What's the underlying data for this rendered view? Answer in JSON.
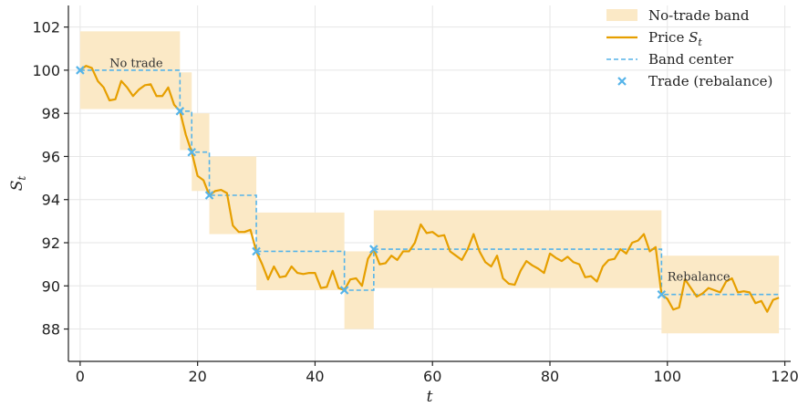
{
  "chart_data": {
    "type": "line",
    "xlabel": "t",
    "ylabel": "S",
    "ylabel_sub": "t",
    "xlim": [
      -2,
      121
    ],
    "ylim": [
      86.5,
      103
    ],
    "xticks": [
      0,
      20,
      40,
      60,
      80,
      100,
      120
    ],
    "yticks": [
      88,
      90,
      92,
      94,
      96,
      98,
      100,
      102
    ],
    "grid": true,
    "legend_placement": "top-right",
    "colors": {
      "band": "#fbe9c6",
      "price": "#e69f00",
      "center": "#56b4e9",
      "trade": "#56b4e9"
    },
    "legend": [
      {
        "key": "band",
        "label": "No-trade band"
      },
      {
        "key": "price",
        "label": "Price ",
        "sub": "t",
        "italic_prefix": "S"
      },
      {
        "key": "center",
        "label": "Band center"
      },
      {
        "key": "trade",
        "label": "Trade (rebalance)"
      }
    ],
    "annotations": [
      {
        "text": "No trade",
        "x": 5,
        "y": 100.15
      },
      {
        "text": "Rebalance",
        "x": 100,
        "y": 90.25
      }
    ],
    "band_segments": [
      {
        "x0": 0,
        "x1": 17,
        "center": 100.0,
        "low": 98.2,
        "high": 101.8
      },
      {
        "x0": 17,
        "x1": 19,
        "center": 98.1,
        "low": 96.3,
        "high": 99.9
      },
      {
        "x0": 19,
        "x1": 22,
        "center": 96.2,
        "low": 94.4,
        "high": 98.0
      },
      {
        "x0": 22,
        "x1": 30,
        "center": 94.2,
        "low": 92.4,
        "high": 96.0
      },
      {
        "x0": 30,
        "x1": 45,
        "center": 91.6,
        "low": 89.8,
        "high": 93.4
      },
      {
        "x0": 45,
        "x1": 50,
        "center": 89.8,
        "low": 88.0,
        "high": 91.6
      },
      {
        "x0": 50,
        "x1": 99,
        "center": 91.7,
        "low": 89.9,
        "high": 93.5
      },
      {
        "x0": 99,
        "x1": 119,
        "center": 89.6,
        "low": 87.8,
        "high": 91.4
      }
    ],
    "trades": [
      {
        "x": 0,
        "y": 100.0
      },
      {
        "x": 17,
        "y": 98.1
      },
      {
        "x": 19,
        "y": 96.2
      },
      {
        "x": 22,
        "y": 94.2
      },
      {
        "x": 30,
        "y": 91.6
      },
      {
        "x": 45,
        "y": 89.8
      },
      {
        "x": 50,
        "y": 91.7
      },
      {
        "x": 99,
        "y": 89.6
      }
    ],
    "price": [
      100.0,
      100.2,
      100.1,
      99.5,
      99.2,
      98.6,
      98.65,
      99.5,
      99.2,
      98.8,
      99.1,
      99.3,
      99.35,
      98.8,
      98.8,
      99.2,
      98.4,
      98.1,
      97.0,
      96.2,
      95.1,
      94.9,
      94.2,
      94.4,
      94.45,
      94.3,
      92.8,
      92.5,
      92.5,
      92.6,
      91.6,
      91.0,
      90.3,
      90.9,
      90.4,
      90.45,
      90.9,
      90.6,
      90.55,
      90.6,
      90.6,
      89.9,
      89.95,
      90.7,
      89.9,
      89.8,
      90.3,
      90.35,
      90.0,
      91.25,
      91.7,
      91.0,
      91.05,
      91.4,
      91.2,
      91.6,
      91.6,
      92.0,
      92.85,
      92.45,
      92.5,
      92.3,
      92.35,
      91.6,
      91.4,
      91.2,
      91.7,
      92.4,
      91.6,
      91.1,
      90.9,
      91.4,
      90.35,
      90.1,
      90.05,
      90.7,
      91.15,
      90.95,
      90.8,
      90.6,
      91.5,
      91.3,
      91.15,
      91.35,
      91.1,
      91.0,
      90.4,
      90.45,
      90.2,
      90.9,
      91.2,
      91.25,
      91.7,
      91.5,
      92.0,
      92.1,
      92.4,
      91.6,
      91.8,
      89.6,
      89.4,
      88.9,
      89.0,
      90.3,
      89.9,
      89.5,
      89.65,
      89.9,
      89.8,
      89.7,
      90.2,
      90.35,
      89.7,
      89.75,
      89.7,
      89.2,
      89.3,
      88.8,
      89.35,
      89.45
    ]
  }
}
